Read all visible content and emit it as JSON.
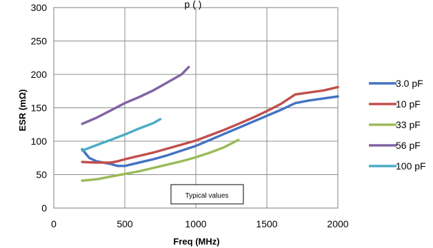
{
  "chart_data": {
    "type": "line",
    "title": "",
    "title_fragment": "p                                        (  )",
    "xlabel": "Freq (MHz)",
    "ylabel": "ESR (mΩ)",
    "xlim": [
      0,
      2000
    ],
    "ylim": [
      0,
      300
    ],
    "xticks": [
      0,
      500,
      1000,
      1500,
      2000
    ],
    "yticks": [
      0,
      50,
      100,
      150,
      200,
      250,
      300
    ],
    "grid": true,
    "legend_position": "right",
    "annotation": "Typical values",
    "series": [
      {
        "name": "3.0 pF",
        "color": "#4472c4",
        "x": [
          200,
          250,
          300,
          400,
          450,
          500,
          600,
          700,
          800,
          900,
          1000,
          1100,
          1200,
          1300,
          1400,
          1500,
          1600,
          1700,
          1800,
          1900,
          2000
        ],
        "y": [
          88,
          75,
          70,
          66,
          63,
          63,
          68,
          73,
          79,
          86,
          93,
          102,
          111,
          120,
          129,
          138,
          147,
          157,
          161,
          164,
          167
        ]
      },
      {
        "name": "10 pF",
        "color": "#c0504d",
        "x": [
          200,
          300,
          400,
          450,
          500,
          600,
          700,
          800,
          900,
          1000,
          1100,
          1200,
          1300,
          1400,
          1500,
          1600,
          1700,
          1800,
          1900,
          2000
        ],
        "y": [
          69,
          68,
          68,
          70,
          73,
          78,
          83,
          89,
          95,
          101,
          109,
          117,
          126,
          135,
          145,
          156,
          170,
          173,
          176,
          181
        ]
      },
      {
        "name": "33 pF",
        "color": "#9bbb59",
        "x": [
          200,
          300,
          400,
          500,
          600,
          700,
          800,
          900,
          1000,
          1100,
          1200,
          1300
        ],
        "y": [
          41,
          43,
          47,
          51,
          55,
          60,
          65,
          70,
          76,
          83,
          91,
          102
        ]
      },
      {
        "name": "56 pF",
        "color": "#8064a2",
        "x": [
          200,
          300,
          400,
          500,
          600,
          700,
          800,
          900,
          950
        ],
        "y": [
          126,
          135,
          146,
          157,
          166,
          176,
          188,
          200,
          211
        ]
      },
      {
        "name": "100 pF",
        "color": "#4bacc6",
        "x": [
          200,
          300,
          400,
          500,
          600,
          700,
          750
        ],
        "y": [
          86,
          94,
          102,
          110,
          119,
          127,
          133
        ]
      }
    ]
  }
}
